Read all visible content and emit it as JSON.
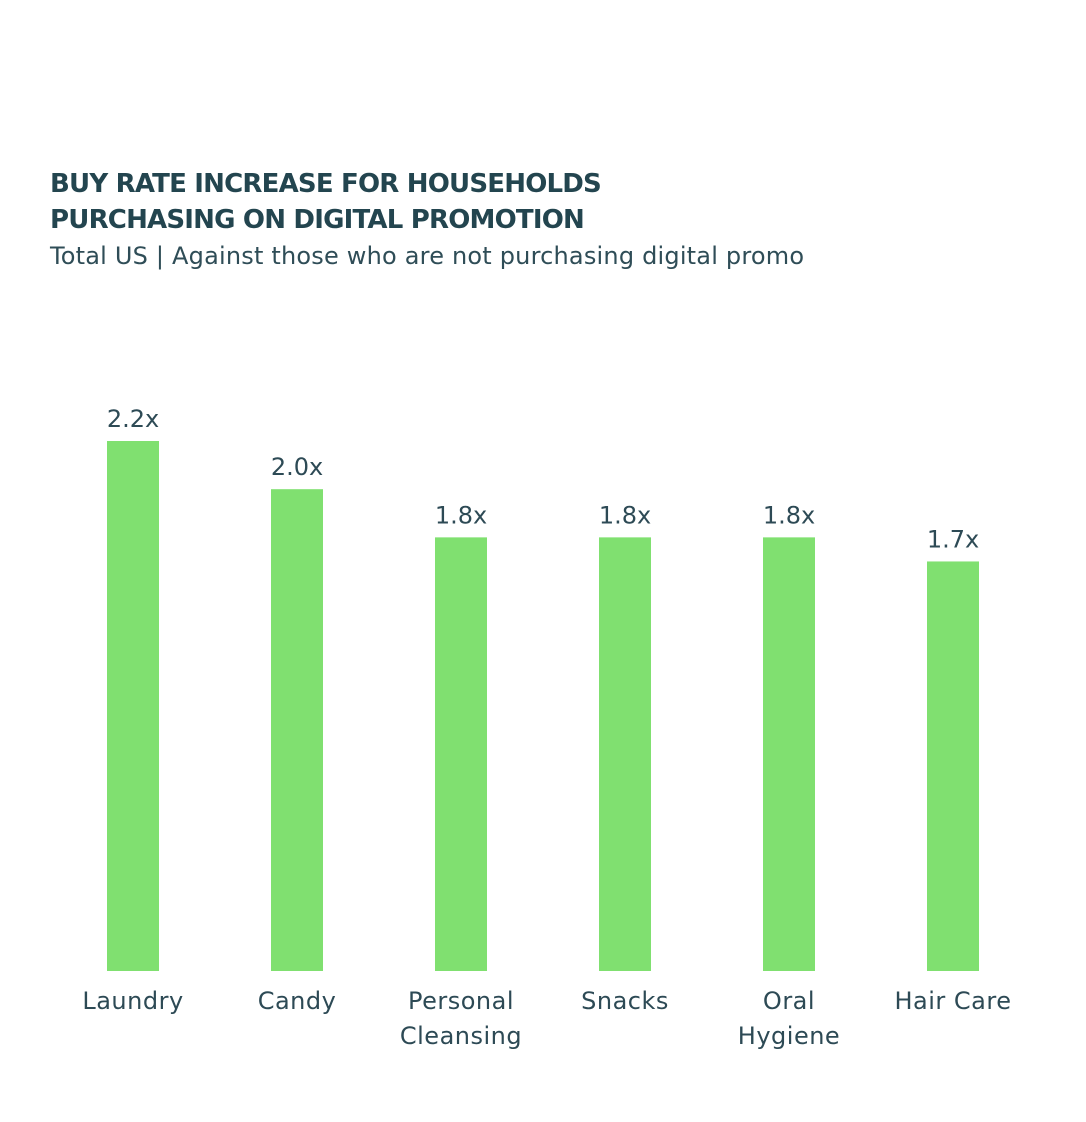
{
  "header": {
    "title_line1": "BUY RATE INCREASE FOR HOUSEHOLDS",
    "title_line2": "PURCHASING ON DIGITAL PROMOTION",
    "subtitle": "Total US | Against those who are not purchasing digital promo"
  },
  "colors": {
    "bar": "#80e070",
    "text": "#2d4a55",
    "title": "#23454f"
  },
  "chart_data": {
    "type": "bar",
    "title": "BUY RATE INCREASE FOR HOUSEHOLDS PURCHASING ON DIGITAL PROMOTION",
    "subtitle": "Total US | Against those who are not purchasing digital promo",
    "categories": [
      [
        "Laundry"
      ],
      [
        "Candy"
      ],
      [
        "Personal",
        "Cleansing"
      ],
      [
        "Snacks"
      ],
      [
        "Oral",
        "Hygiene"
      ],
      [
        "Hair Care"
      ]
    ],
    "values": [
      2.2,
      2.0,
      1.8,
      1.8,
      1.8,
      1.7
    ],
    "value_labels": [
      "2.2x",
      "2.0x",
      "1.8x",
      "1.8x",
      "1.8x",
      "1.7x"
    ],
    "ylim": [
      0,
      2.2
    ],
    "grid": false,
    "legend": "none"
  }
}
